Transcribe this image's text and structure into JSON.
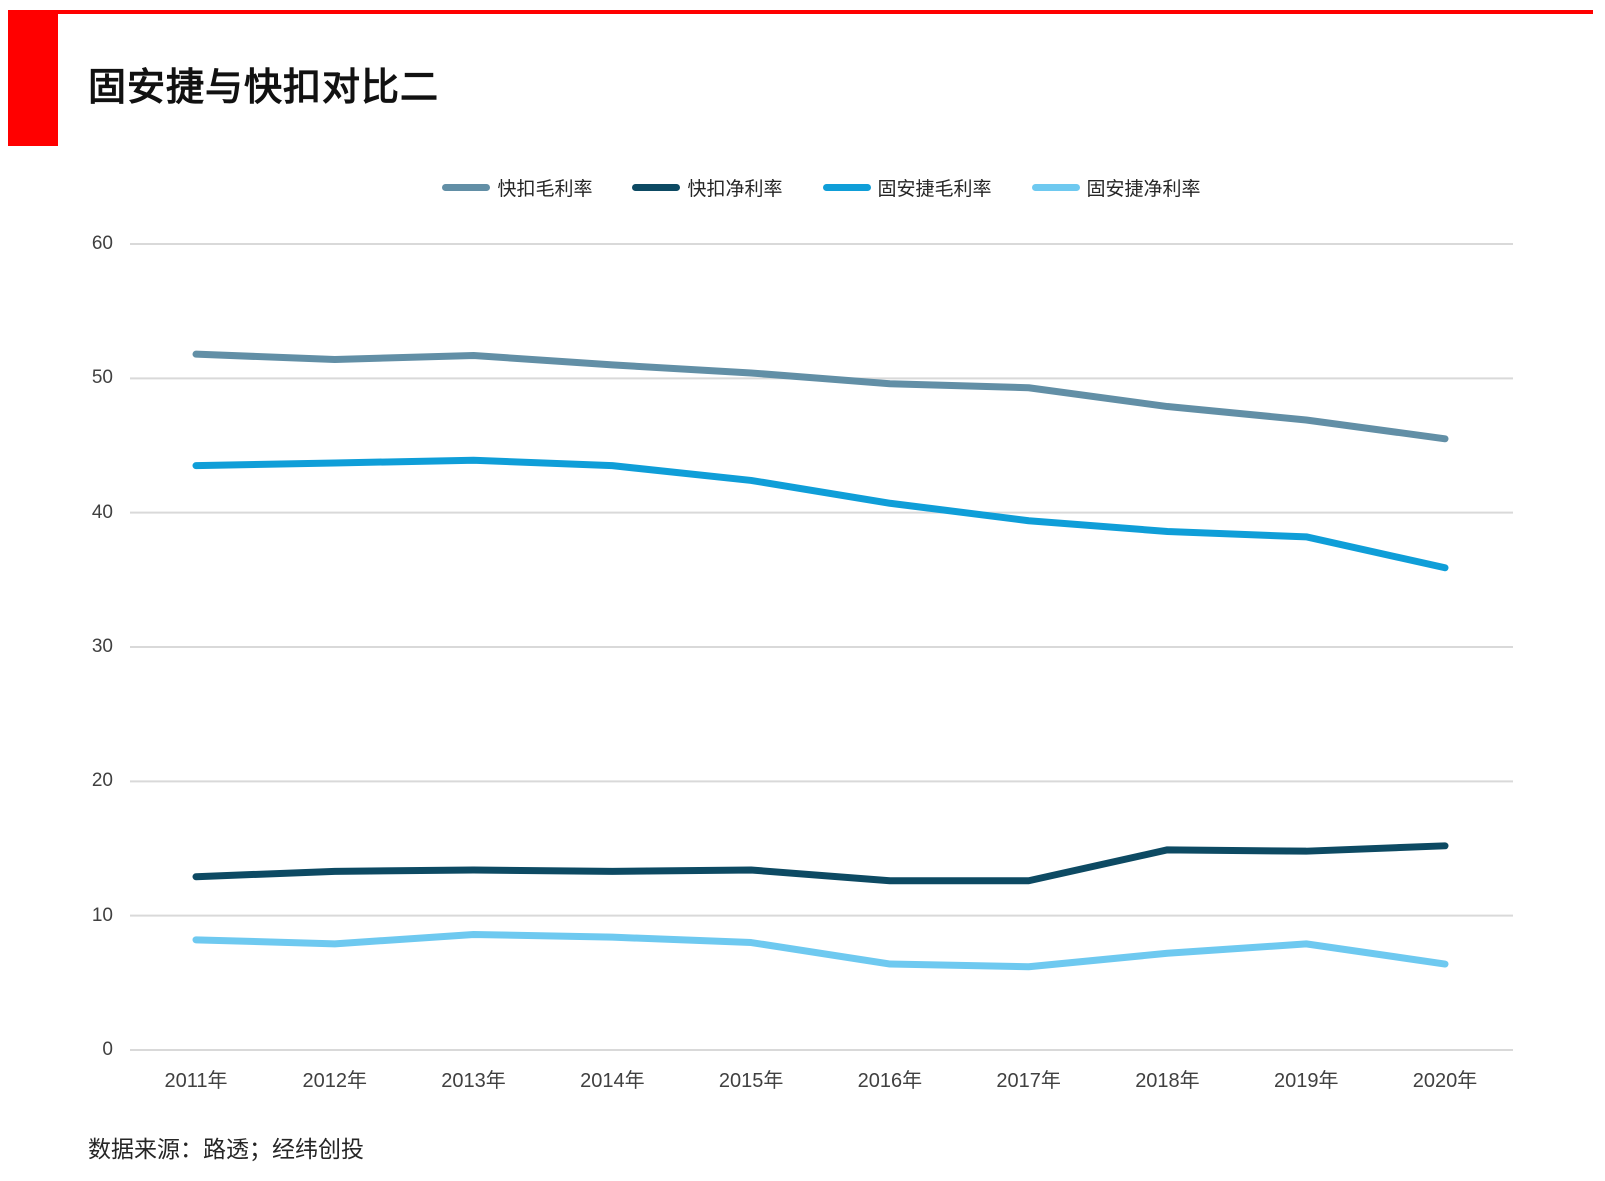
{
  "page": {
    "title": "固安捷与快扣对比二",
    "source": "数据来源：路透；经纬创投"
  },
  "colors": {
    "accent_red": "#ff0000",
    "gridline": "#d9d9d9",
    "axis_text": "#404040"
  },
  "chart_data": {
    "type": "line",
    "title": "固安捷与快扣对比二",
    "categories": [
      "2011年",
      "2012年",
      "2013年",
      "2014年",
      "2015年",
      "2016年",
      "2017年",
      "2018年",
      "2019年",
      "2020年"
    ],
    "series": [
      {
        "name": "快扣毛利率",
        "color": "#628fa6",
        "values": [
          51.8,
          51.4,
          51.7,
          51.0,
          50.4,
          49.6,
          49.3,
          47.9,
          46.9,
          45.5
        ]
      },
      {
        "name": "快扣净利率",
        "color": "#0d4a63",
        "values": [
          12.9,
          13.3,
          13.4,
          13.3,
          13.4,
          12.6,
          12.6,
          14.9,
          14.8,
          15.2
        ]
      },
      {
        "name": "固安捷毛利率",
        "color": "#0f9ed8",
        "values": [
          43.5,
          43.7,
          43.9,
          43.5,
          42.4,
          40.7,
          39.4,
          38.6,
          38.2,
          35.9
        ]
      },
      {
        "name": "固安捷净利率",
        "color": "#6ec9f0",
        "values": [
          8.2,
          7.9,
          8.6,
          8.4,
          8.0,
          6.4,
          6.2,
          7.2,
          7.9,
          6.4
        ]
      }
    ],
    "yticks": [
      0,
      10,
      20,
      30,
      40,
      50,
      60
    ],
    "ylim": [
      0,
      60
    ],
    "xlabel": "",
    "ylabel": "",
    "grid": "horizontal",
    "legend_position": "top"
  }
}
